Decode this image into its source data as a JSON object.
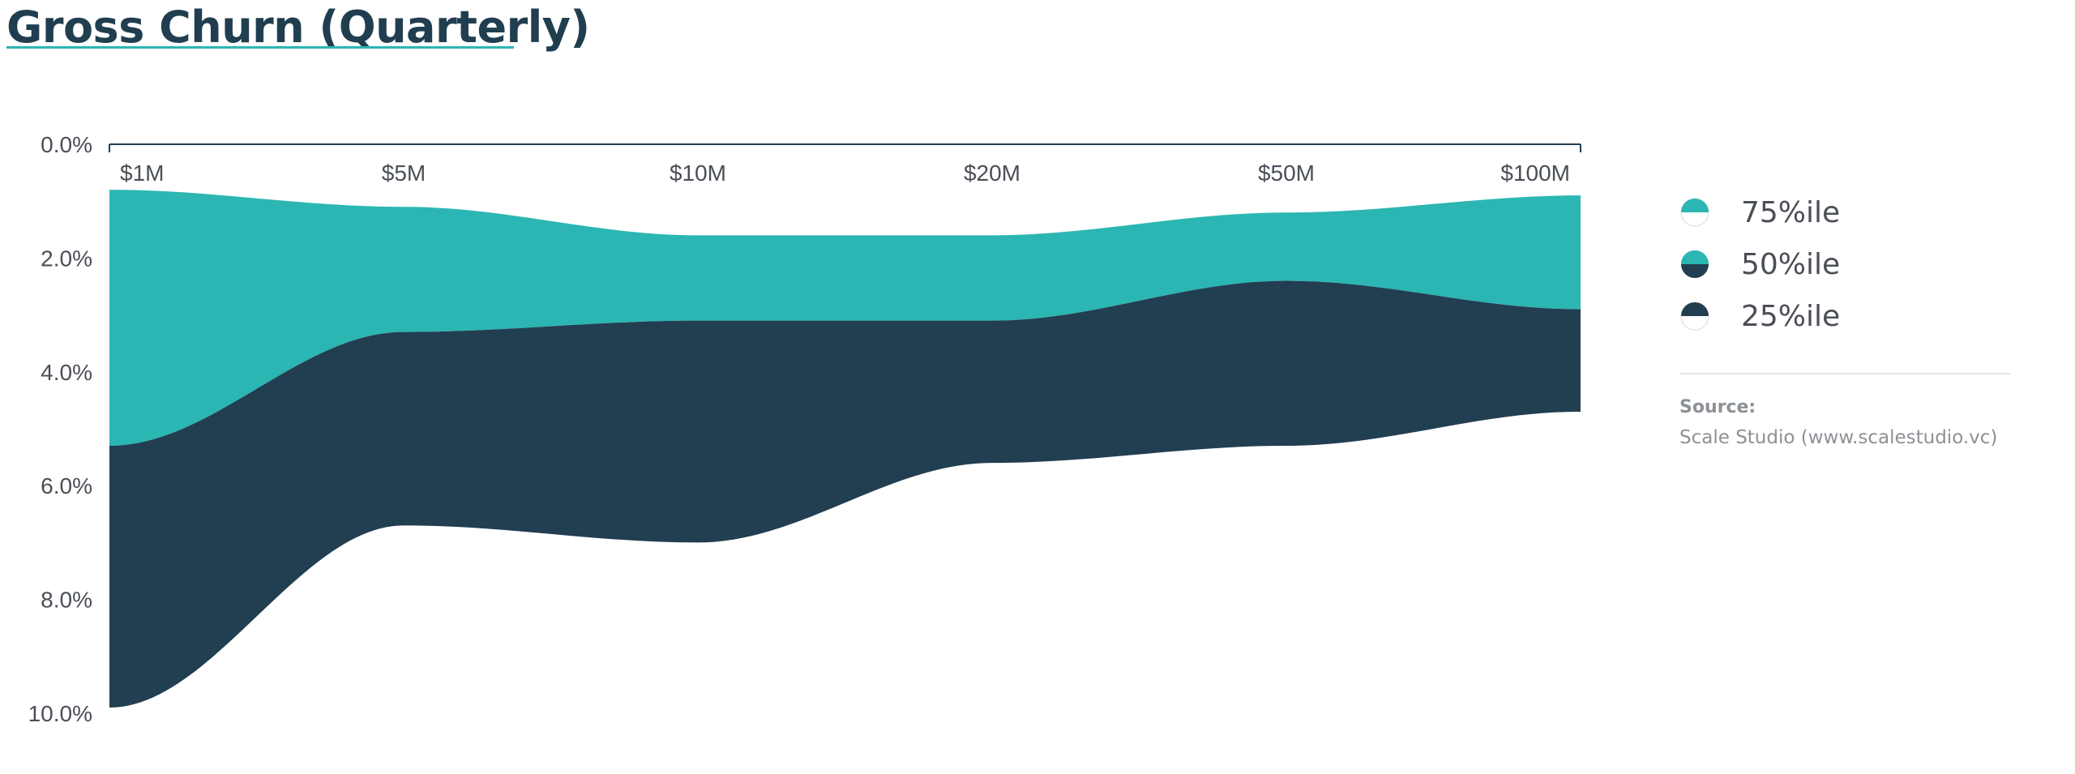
{
  "title": "Gross Churn (Quarterly)",
  "colors": {
    "p75": "#2bb6b3",
    "p25": "#223e51",
    "axis": "#223e51",
    "tick_text": "#4a4f57",
    "title": "#213e50",
    "underline": "#2bb6b3"
  },
  "chart_data": {
    "type": "area",
    "title": "Gross Churn (Quarterly)",
    "categories": [
      "$1M",
      "$5M",
      "$10M",
      "$20M",
      "$50M",
      "$100M"
    ],
    "y_tick_labels": [
      "0.0%",
      "2.0%",
      "4.0%",
      "6.0%",
      "8.0%",
      "10.0%"
    ],
    "y_ticks": [
      0,
      2,
      4,
      6,
      8,
      10
    ],
    "ylim": [
      0,
      10
    ],
    "y_reversed": true,
    "y_unit": "%",
    "grid": false,
    "legend_position": "right",
    "series": [
      {
        "name": "75%ile",
        "values": [
          0.8,
          1.1,
          1.6,
          1.6,
          1.2,
          0.9
        ]
      },
      {
        "name": "50%ile",
        "values": [
          5.3,
          3.3,
          3.1,
          3.1,
          2.4,
          2.9
        ]
      },
      {
        "name": "25%ile",
        "values": [
          9.9,
          6.7,
          7.0,
          5.6,
          5.3,
          4.7
        ]
      }
    ]
  },
  "legend": {
    "items": [
      {
        "label": "75%ile",
        "icon": "half-circle-teal-top-icon"
      },
      {
        "label": "50%ile",
        "icon": "half-circle-teal-navy-icon"
      },
      {
        "label": "25%ile",
        "icon": "half-circle-navy-top-icon"
      }
    ]
  },
  "source": {
    "title": "Source:",
    "text": "Scale Studio (www.scalestudio.vc)"
  }
}
